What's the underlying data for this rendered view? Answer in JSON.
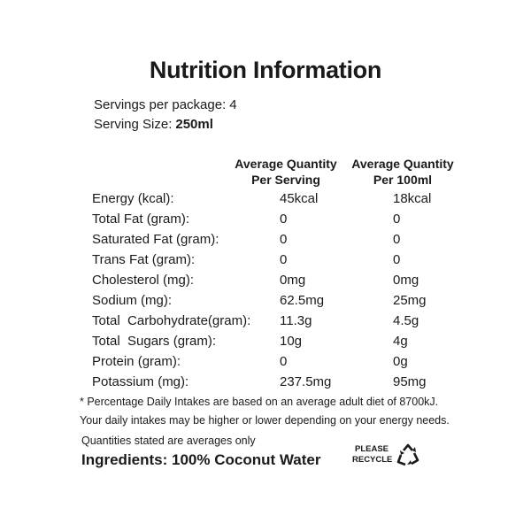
{
  "label": {
    "title": "Nutrition Information",
    "servings_per_package_label": "Servings per package:",
    "servings_per_package_value": "4",
    "serving_size_label": "Serving Size:",
    "serving_size_value": "250ml",
    "columns": {
      "per_serving_line1": "Average Quantity",
      "per_serving_line2": "Per Serving",
      "per_100ml_line1": "Average Quantity",
      "per_100ml_line2": "Per 100ml"
    },
    "rows": [
      {
        "name": "Energy (kcal):",
        "per_serving": "45kcal",
        "per_100ml": "18kcal"
      },
      {
        "name": "Total Fat (gram):",
        "per_serving": "0",
        "per_100ml": "0"
      },
      {
        "name": "Saturated Fat (gram):",
        "per_serving": "0",
        "per_100ml": "0"
      },
      {
        "name": "Trans Fat (gram):",
        "per_serving": "0",
        "per_100ml": "0"
      },
      {
        "name": "Cholesterol (mg):",
        "per_serving": "0mg",
        "per_100ml": "0mg"
      },
      {
        "name": "Sodium (mg):",
        "per_serving": "62.5mg",
        "per_100ml": "25mg"
      },
      {
        "name": "Total  Carbohydrate(gram):",
        "per_serving": "11.3g",
        "per_100ml": "4.5g"
      },
      {
        "name": "Total  Sugars (gram):",
        "per_serving": "10g",
        "per_100ml": "4g"
      },
      {
        "name": "Protein (gram):",
        "per_serving": "0",
        "per_100ml": "0g"
      },
      {
        "name": "Potassium (mg):",
        "per_serving": "237.5mg",
        "per_100ml": "95mg"
      }
    ],
    "footnote_line1": "* Percentage Daily Intakes are based on an average adult diet of 8700kJ.",
    "footnote_line2": "Your daily intakes may be higher or lower depending on your energy needs.",
    "averages_note": "Quantities stated are averages only",
    "ingredients": "Ingredients: 100% Coconut Water",
    "recycle_line1": "PLEASE",
    "recycle_line2": "RECYCLE",
    "recycle_icon": "recycle-icon"
  }
}
